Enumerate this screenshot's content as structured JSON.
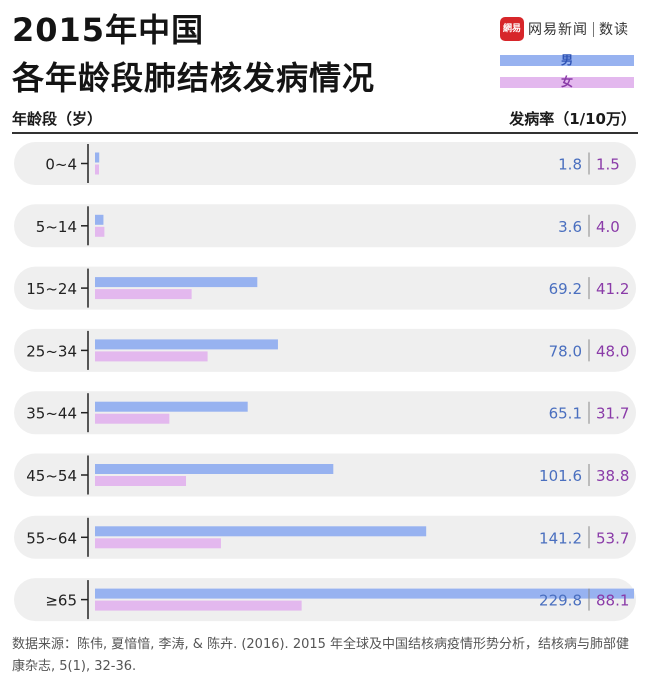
{
  "header": {
    "title_line1": "2015年中国",
    "title_line2": "各年龄段肺结核发病情况",
    "brand_logo": "網易",
    "brand_name": "网易新闻",
    "brand_sub": "数读",
    "y_header": "年龄段（岁）",
    "value_header": "发病率（1/10万）"
  },
  "colors": {
    "male_bar": "#97b2f0",
    "female_bar": "#e3b8ee",
    "male_text": "#4a6fbf",
    "female_text": "#8a3ba8",
    "row_bg": "#efefef"
  },
  "chart_data": {
    "type": "bar",
    "orientation": "horizontal",
    "title": "2015年中国各年龄段肺结核发病情况",
    "xlabel": "发病率（1/10万）",
    "ylabel": "年龄段（岁）",
    "categories": [
      "0~4",
      "5~14",
      "15~24",
      "25~34",
      "35~44",
      "45~54",
      "55~64",
      "≥65"
    ],
    "series": [
      {
        "name": "男",
        "values": [
          1.8,
          3.6,
          69.2,
          78.0,
          65.1,
          101.6,
          141.2,
          229.8
        ],
        "labels": [
          "1.8",
          "3.6",
          "69.2",
          "78.0",
          "65.1",
          "101.6",
          "141.2",
          "229.8"
        ]
      },
      {
        "name": "女",
        "values": [
          1.5,
          4.0,
          41.2,
          48.0,
          31.7,
          38.8,
          53.7,
          88.1
        ],
        "labels": [
          "1.5",
          "4.0",
          "41.2",
          "48.0",
          "31.7",
          "38.8",
          "53.7",
          "88.1"
        ]
      }
    ],
    "xlim": [
      0,
      229.8
    ],
    "legend": "top-right",
    "grid": false
  },
  "source": "数据来源：陈伟, 夏愔愔, 李涛, & 陈卉. (2016). 2015 年全球及中国结核病疫情形势分析，结核病与肺部健康杂志, 5(1), 32-36."
}
